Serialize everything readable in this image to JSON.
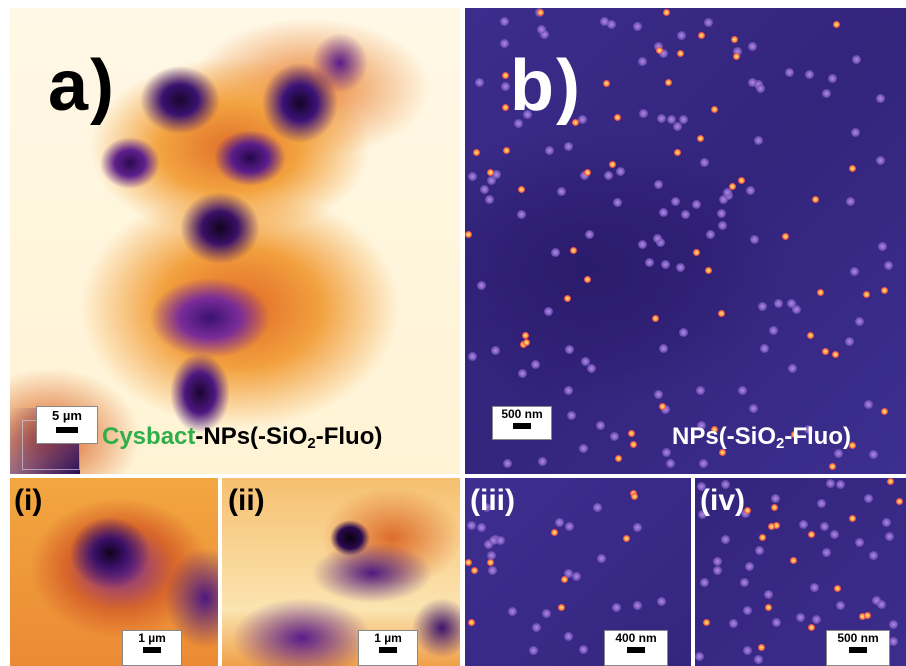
{
  "panels": {
    "a": {
      "letter": "a)",
      "scale": "5 µm"
    },
    "b": {
      "letter": "b)",
      "scale": "500 nm"
    },
    "i": {
      "label": "(i)",
      "scale": "1 µm"
    },
    "ii": {
      "label": "(ii)",
      "scale": "1 µm"
    },
    "iii": {
      "label": "(iii)",
      "scale": "400 nm"
    },
    "iv": {
      "label": "(iv)",
      "scale": "500 nm"
    }
  },
  "captions": {
    "a_green": "Cysbact",
    "a_rest_prefix": "-NPs(-SiO",
    "a_sub": "2",
    "a_rest_suffix": "-Fluo)",
    "b_prefix": "NPs(-SiO",
    "b_sub": "2",
    "b_suffix": "-Fluo)"
  },
  "colors": {
    "caption_green": "#2fae4a",
    "purple_background": "#3a2b88",
    "orange_fluorescence": "#f0a040"
  }
}
